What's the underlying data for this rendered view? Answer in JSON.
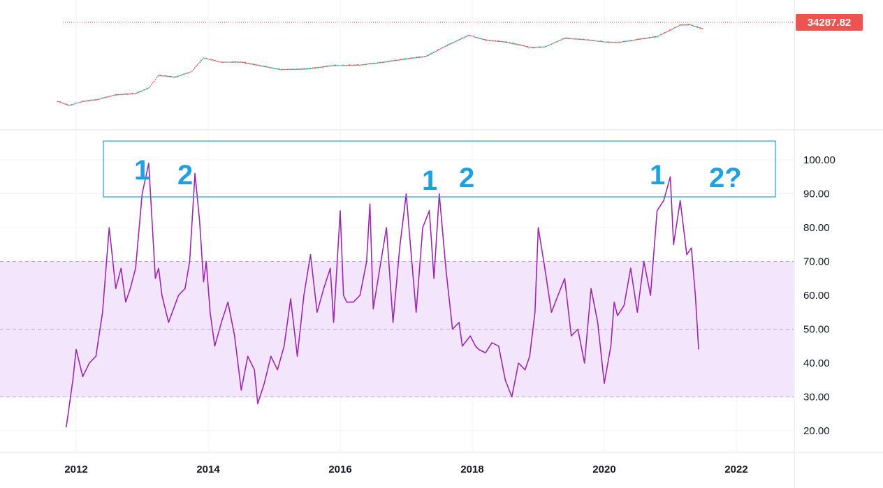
{
  "price_pane": {
    "last_price_label": "34287.82",
    "last_price_color": "#ef5350",
    "up_color": "#26a69a",
    "down_color": "#ef5350"
  },
  "annotations": [
    "1",
    "2",
    "1",
    "2",
    "1",
    "2?"
  ],
  "chart_data": [
    {
      "type": "candlestick",
      "scale": "log",
      "note": "weekly price candles, values approximate",
      "x": [
        2011.72,
        2011.9,
        2012.1,
        2012.3,
        2012.6,
        2012.9,
        2013.1,
        2013.25,
        2013.5,
        2013.75,
        2013.93,
        2014.2,
        2014.5,
        2014.8,
        2015.1,
        2015.5,
        2015.9,
        2016.3,
        2016.7,
        2017.0,
        2017.3,
        2017.6,
        2017.95,
        2018.2,
        2018.5,
        2018.9,
        2019.1,
        2019.4,
        2019.7,
        2020.0,
        2020.2,
        2020.5,
        2020.8,
        2021.0,
        2021.15,
        2021.3,
        2021.5
      ],
      "values": [
        5,
        3,
        5,
        6,
        11,
        13,
        25,
        120,
        95,
        190,
        1000,
        600,
        600,
        380,
        240,
        260,
        400,
        420,
        620,
        900,
        1200,
        4300,
        16000,
        9000,
        7000,
        3600,
        3800,
        11000,
        9500,
        7200,
        6500,
        9500,
        13500,
        30000,
        56000,
        58000,
        34287.82
      ],
      "last_price": 34287.82
    },
    {
      "type": "line",
      "series": [
        {
          "x": [
            2011.85,
            2011.95,
            2012.0,
            2012.05,
            2012.1,
            2012.15,
            2012.2,
            2012.3,
            2012.4,
            2012.5,
            2012.6,
            2012.68,
            2012.75,
            2012.82,
            2012.9,
            2013.0,
            2013.1,
            2013.2,
            2013.25,
            2013.3,
            2013.4,
            2013.55,
            2013.65,
            2013.72,
            2013.8,
            2013.87,
            2013.93,
            2013.97,
            2014.03,
            2014.1,
            2014.2,
            2014.3,
            2014.4,
            2014.5,
            2014.6,
            2014.7,
            2014.75,
            2014.85,
            2014.95,
            2015.05,
            2015.15,
            2015.25,
            2015.35,
            2015.45,
            2015.55,
            2015.65,
            2015.75,
            2015.85,
            2015.9,
            2016.0,
            2016.05,
            2016.1,
            2016.2,
            2016.3,
            2016.4,
            2016.45,
            2016.5,
            2016.6,
            2016.7,
            2016.8,
            2016.9,
            2017.0,
            2017.05,
            2017.15,
            2017.25,
            2017.35,
            2017.42,
            2017.5,
            2017.6,
            2017.7,
            2017.8,
            2017.85,
            2017.97,
            2018.05,
            2018.1,
            2018.2,
            2018.3,
            2018.4,
            2018.5,
            2018.6,
            2018.7,
            2018.8,
            2018.87,
            2018.95,
            2019.0,
            2019.1,
            2019.2,
            2019.3,
            2019.4,
            2019.5,
            2019.6,
            2019.7,
            2019.8,
            2019.9,
            2020.0,
            2020.1,
            2020.15,
            2020.2,
            2020.3,
            2020.4,
            2020.5,
            2020.6,
            2020.7,
            2020.8,
            2020.9,
            2021.0,
            2021.05,
            2021.15,
            2021.25,
            2021.32,
            2021.38,
            2021.43
          ],
          "values": [
            21,
            35,
            44,
            40,
            36,
            38,
            40,
            42,
            55,
            80,
            62,
            68,
            58,
            62,
            68,
            90,
            99,
            65,
            68,
            60,
            52,
            60,
            62,
            70,
            96,
            82,
            64,
            70,
            55,
            45,
            52,
            58,
            48,
            32,
            42,
            38,
            28,
            34,
            42,
            38,
            45,
            59,
            42,
            60,
            72,
            55,
            62,
            68,
            52,
            85,
            60,
            58,
            58,
            60,
            70,
            87,
            56,
            68,
            80,
            52,
            74,
            90,
            78,
            55,
            80,
            85,
            65,
            90,
            68,
            50,
            52,
            45,
            48,
            45,
            44,
            43,
            46,
            45,
            35,
            30,
            40,
            38,
            42,
            55,
            80,
            68,
            55,
            60,
            65,
            48,
            50,
            40,
            62,
            52,
            34,
            45,
            58,
            54,
            57,
            68,
            55,
            70,
            60,
            85,
            88,
            95,
            75,
            88,
            72,
            74,
            60,
            44
          ],
          "name": ""
        }
      ],
      "title": "",
      "xlabel": "",
      "ylabel": "",
      "xlim": [
        2011.6,
        2022.8
      ],
      "ylim": [
        14,
        108
      ],
      "yticks": [
        "20.00",
        "30.00",
        "40.00",
        "50.00",
        "60.00",
        "70.00",
        "80.00",
        "90.00",
        "100.00"
      ],
      "xticks": [
        "2012",
        "2014",
        "2016",
        "2018",
        "2020",
        "2022"
      ],
      "band": [
        30,
        70
      ],
      "band_color": "#f3e5fb",
      "line_color": "#9c27b0",
      "highlight_box_color": "#1da1e0",
      "grid": true
    }
  ]
}
